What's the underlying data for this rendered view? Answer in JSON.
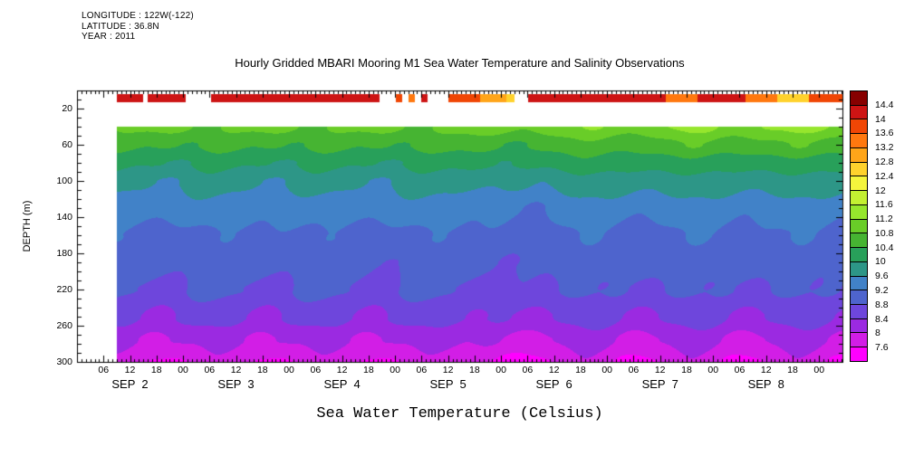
{
  "header": {
    "longitude": "LONGITUDE : 122W(-122)",
    "latitude": "LATITUDE : 36.8N",
    "year": "YEAR : 2011"
  },
  "chart_data": {
    "type": "heatmap",
    "title": "Hourly Gridded MBARI Mooring M1 Sea Water Temperature and Salinity Observations",
    "xlabel": "Sea Water Temperature (Celsius)",
    "ylabel": "DEPTH (m)",
    "y_axis": {
      "ticks": [
        20,
        60,
        100,
        140,
        180,
        220,
        260,
        300
      ],
      "range_m": [
        0,
        300
      ],
      "inverted": true
    },
    "x_axis": {
      "days": [
        "SEP  2",
        "SEP  3",
        "SEP  4",
        "SEP  5",
        "SEP  6",
        "SEP  7",
        "SEP  8"
      ],
      "time_tick_labels": [
        "06",
        "12",
        "18",
        "00"
      ],
      "range_days": [
        0,
        7.22
      ],
      "minor_tick_hours": 1,
      "labeled_tick_hours": 6
    },
    "data_start_day": 0.37,
    "colorbar": {
      "levels": [
        7.6,
        8,
        8.4,
        8.8,
        9.2,
        9.6,
        10,
        10.4,
        10.8,
        11.2,
        11.6,
        12,
        12.4,
        12.8,
        13.2,
        13.6,
        14,
        14.4
      ],
      "colors": [
        "#ff00ff",
        "#d21ee6",
        "#9b2ae1",
        "#6e46dc",
        "#4e64cd",
        "#4182c8",
        "#2d9687",
        "#28a05a",
        "#46b432",
        "#69cd28",
        "#96e62d",
        "#c3f032",
        "#f5f53c",
        "#ffd22d",
        "#ffa519",
        "#ff780f",
        "#f04605",
        "#cd1414",
        "#870000"
      ]
    },
    "surface_band": {
      "depth_range_m": [
        4,
        13
      ],
      "segments": [
        {
          "start": 0.37,
          "end": 0.62,
          "temp": 14.2
        },
        {
          "start": 0.66,
          "end": 1.02,
          "temp": 14.3
        },
        {
          "start": 1.26,
          "end": 2.85,
          "temp": 14.2
        },
        {
          "start": 3.0,
          "end": 3.06,
          "temp": 13.8
        },
        {
          "start": 3.12,
          "end": 3.18,
          "temp": 13.4
        },
        {
          "start": 3.24,
          "end": 3.3,
          "temp": 14.0
        },
        {
          "start": 3.5,
          "end": 3.8,
          "temp": 13.9
        },
        {
          "start": 3.8,
          "end": 4.05,
          "temp": 13.0
        },
        {
          "start": 4.05,
          "end": 4.12,
          "temp": 12.6
        },
        {
          "start": 4.25,
          "end": 5.0,
          "temp": 14.2
        },
        {
          "start": 5.0,
          "end": 5.55,
          "temp": 14.0
        },
        {
          "start": 5.55,
          "end": 5.85,
          "temp": 13.4
        },
        {
          "start": 5.85,
          "end": 6.3,
          "temp": 14.1
        },
        {
          "start": 6.3,
          "end": 6.6,
          "temp": 13.2
        },
        {
          "start": 6.6,
          "end": 6.9,
          "temp": 12.6
        },
        {
          "start": 6.9,
          "end": 7.22,
          "temp": 13.8
        }
      ]
    },
    "grid": {
      "times_days": [
        0.3,
        0.8,
        1.3,
        1.8,
        2.3,
        2.8,
        3.3,
        3.8,
        4.3,
        4.8,
        5.3,
        5.8,
        6.3,
        6.8,
        7.3
      ],
      "depths_m": [
        40,
        60,
        80,
        100,
        130,
        160,
        190,
        220,
        250,
        275,
        300
      ],
      "temperatures": [
        [
          10.8,
          10.9,
          10.8,
          10.9,
          10.8,
          10.9,
          10.8,
          11.0,
          10.9,
          11.2,
          11.0,
          11.3,
          11.1,
          11.3,
          11.2
        ],
        [
          10.5,
          10.4,
          10.5,
          10.4,
          10.5,
          10.4,
          10.5,
          10.5,
          10.4,
          10.7,
          10.5,
          10.8,
          10.6,
          10.8,
          10.6
        ],
        [
          10.1,
          10.0,
          10.1,
          10.0,
          10.1,
          10.0,
          10.1,
          10.1,
          10.0,
          10.3,
          10.1,
          10.3,
          10.1,
          10.3,
          10.1
        ],
        [
          9.8,
          9.6,
          9.8,
          9.6,
          9.8,
          9.6,
          9.8,
          9.7,
          9.6,
          9.9,
          9.7,
          9.9,
          9.7,
          9.9,
          9.7
        ],
        [
          9.4,
          9.3,
          9.5,
          9.3,
          9.4,
          9.3,
          9.5,
          9.3,
          9.2,
          9.5,
          9.3,
          9.5,
          9.3,
          9.5,
          9.3
        ],
        [
          9.2,
          9.0,
          9.2,
          9.1,
          9.2,
          9.0,
          9.2,
          9.1,
          9.0,
          9.2,
          9.0,
          9.2,
          9.1,
          9.2,
          9.0
        ],
        [
          9.0,
          8.9,
          9.0,
          8.9,
          9.0,
          8.8,
          9.0,
          8.9,
          8.8,
          9.0,
          8.9,
          9.0,
          8.9,
          9.0,
          8.8
        ],
        [
          8.9,
          8.7,
          8.9,
          8.7,
          8.9,
          8.7,
          8.9,
          8.7,
          8.7,
          8.9,
          8.7,
          8.9,
          8.7,
          8.9,
          8.7
        ],
        [
          8.6,
          8.3,
          8.6,
          8.3,
          8.6,
          8.3,
          8.6,
          8.4,
          8.3,
          8.6,
          8.3,
          8.6,
          8.3,
          8.6,
          8.3
        ],
        [
          8.2,
          7.9,
          8.2,
          7.9,
          8.2,
          7.9,
          8.2,
          8.0,
          7.9,
          8.2,
          7.9,
          8.2,
          7.9,
          8.2,
          7.9
        ],
        [
          7.9,
          7.5,
          7.9,
          7.5,
          7.9,
          7.5,
          7.9,
          7.6,
          7.5,
          7.9,
          7.5,
          7.9,
          7.5,
          7.9,
          7.5
        ]
      ]
    }
  }
}
